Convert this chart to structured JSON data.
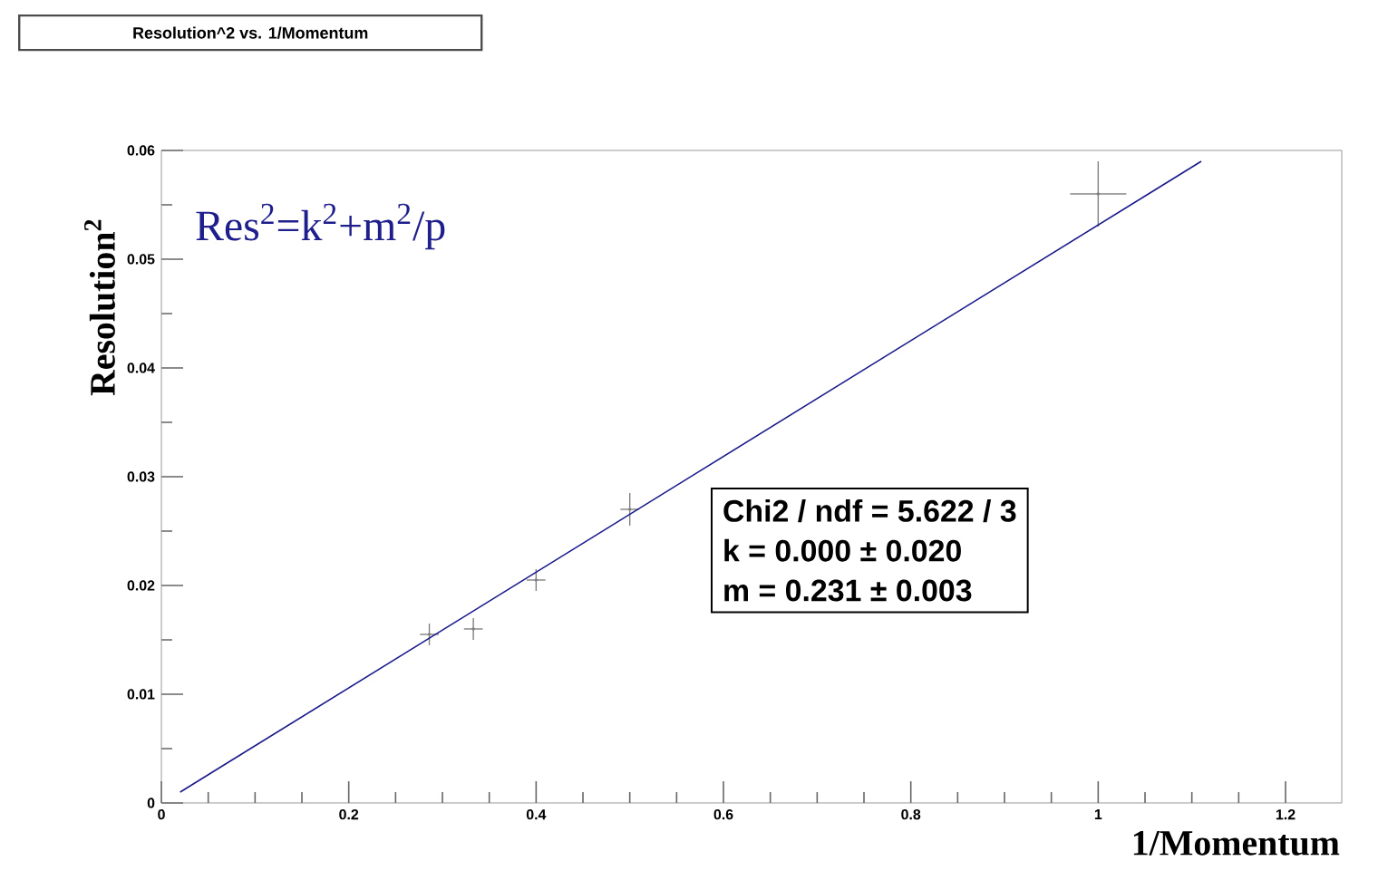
{
  "chart_data": {
    "type": "scatter",
    "title": "Resolution^2 vs. 1/Momentum",
    "xlabel": "1/Momentum",
    "ylabel": "Resolution$^{2}$",
    "annotations": [
      "Res$^{2}$=k$^{2}$+m$^{2}$/p",
      "Chi2 / ndf =  5.622 / 3",
      "k        =  0.000  ±  0.020",
      "m        =  0.231  ±  0.003"
    ],
    "series": [
      {
        "type": "scatter",
        "x": [
          0.286,
          0.333,
          0.4,
          0.5,
          1.0
        ],
        "values": [
          0.0155,
          0.016,
          0.0205,
          0.027,
          0.056
        ],
        "errors": [
          0.001,
          0.001,
          0.001,
          0.0015,
          0.003
        ],
        "xerrors": [
          0.01,
          0.01,
          0.01,
          0.01,
          0.03
        ],
        "color": "#808080"
      },
      {
        "type": "line",
        "x": [
          0.02,
          1.11
        ],
        "values": [
          0.001,
          0.059
        ],
        "color": "#1a1a8c"
      }
    ],
    "xlim": [
      0,
      1.26
    ],
    "ylim": [
      0,
      0.06
    ],
    "xticks": [
      0,
      0.2,
      0.4,
      0.6,
      0.8,
      1,
      1.2
    ],
    "yticks": [
      0,
      0.01,
      0.02,
      0.03,
      0.04,
      0.05,
      0.06
    ]
  }
}
